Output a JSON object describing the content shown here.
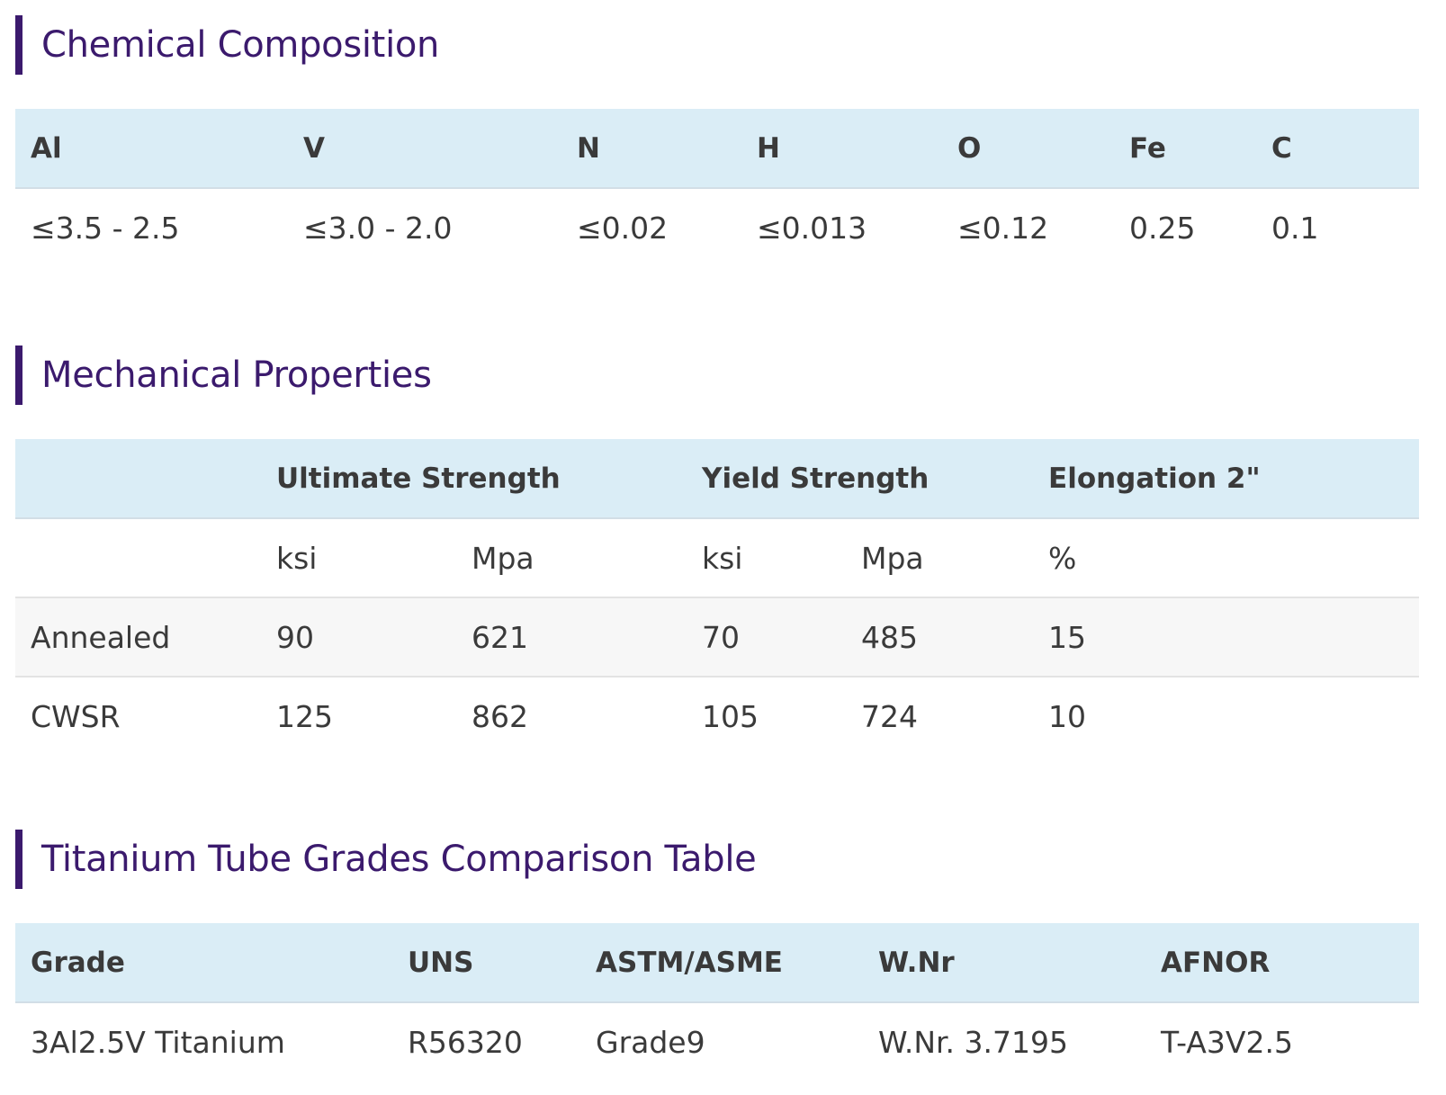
{
  "chemical": {
    "title": "Chemical Composition",
    "headers": [
      "Al",
      "V",
      "N",
      "H",
      "O",
      "Fe",
      "C"
    ],
    "values": [
      "≤3.5 - 2.5",
      "≤3.0 - 2.0",
      "≤0.02",
      "≤0.013",
      "≤0.12",
      "0.25",
      "0.1"
    ]
  },
  "mechanical": {
    "title": "Mechanical Properties",
    "groups": [
      "",
      "Ultimate Strength",
      "Yield Strength",
      "Elongation 2\""
    ],
    "units": [
      "",
      "ksi",
      "Mpa",
      "ksi",
      "Mpa",
      "%"
    ],
    "rows": [
      [
        "Annealed",
        "90",
        "621",
        "70",
        "485",
        "15"
      ],
      [
        "CWSR",
        "125",
        "862",
        "105",
        "724",
        "10"
      ]
    ]
  },
  "grades": {
    "title": "Titanium Tube Grades Comparison Table",
    "headers": [
      "Grade",
      "UNS",
      "ASTM/ASME",
      "W.Nr",
      "AFNOR"
    ],
    "rows": [
      [
        "3Al2.5V Titanium",
        "R56320",
        "Grade9",
        "W.Nr. 3.7195",
        "T-A3V2.5"
      ]
    ]
  }
}
